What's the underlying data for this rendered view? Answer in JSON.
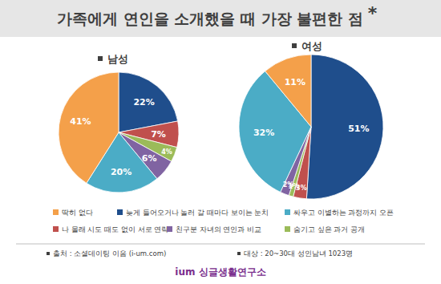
{
  "header": {
    "title": "가족에게 연인을 소개했을 때 가장 불편한 점",
    "title_mark": "*"
  },
  "legend": {
    "categories": [
      "딱히 없다",
      "늦게 들어오거나 놀러 갈 때마다 보이는 눈치",
      "싸우고 이별하는 과정까지 오픈",
      "나 몰래 시도 때도 없이 서로 연락",
      "친구분 자녀의 연인과 비교",
      "숨기고 싶은 과거 공개"
    ],
    "colors": [
      "#f4a04a",
      "#1f4e8c",
      "#4bacc6",
      "#c0504d",
      "#8064a2",
      "#9bbb59"
    ]
  },
  "chart_data": [
    {
      "type": "pie",
      "title": "남성",
      "values": [
        41,
        22,
        20,
        7,
        6,
        4
      ],
      "value_labels": [
        "41%",
        "22%",
        "20%",
        "7%",
        "6%",
        "4%"
      ],
      "data_labels": true
    },
    {
      "type": "pie",
      "title": "여성",
      "values": [
        11,
        51,
        32,
        3,
        2,
        1
      ],
      "value_labels": [
        "11%",
        "51%",
        "32%",
        "3%",
        "2%",
        "1%"
      ],
      "data_labels": true
    }
  ],
  "footer": {
    "source": "출처 : 소셜데이팅 이음 (i-um.com)",
    "target": "대상 : 20~30대 성인남녀 1023명",
    "brand": "ium 싱글생활연구소"
  }
}
